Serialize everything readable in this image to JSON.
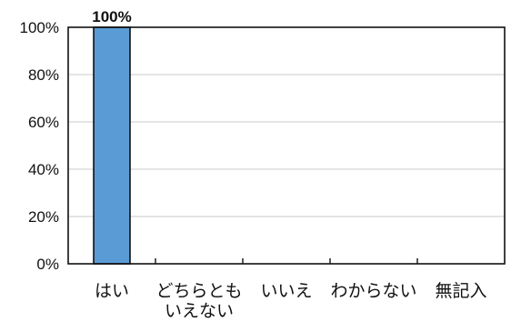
{
  "chart_data": {
    "type": "bar",
    "categories": [
      [
        "はい"
      ],
      [
        "どちらとも",
        "いえない"
      ],
      [
        "いいえ"
      ],
      [
        "わからない"
      ],
      [
        "無記入"
      ]
    ],
    "values": [
      100,
      0,
      0,
      0,
      0
    ],
    "data_labels": [
      "100%",
      "",
      "",
      "",
      ""
    ],
    "yticks": [
      "0%",
      "20%",
      "40%",
      "60%",
      "80%",
      "100%"
    ],
    "ylim": [
      0,
      100
    ],
    "grid": true,
    "bar_color": "#5b9bd5",
    "bar_edge_color": "#111111",
    "grid_color": "#c8c8c8",
    "legend": "none"
  }
}
